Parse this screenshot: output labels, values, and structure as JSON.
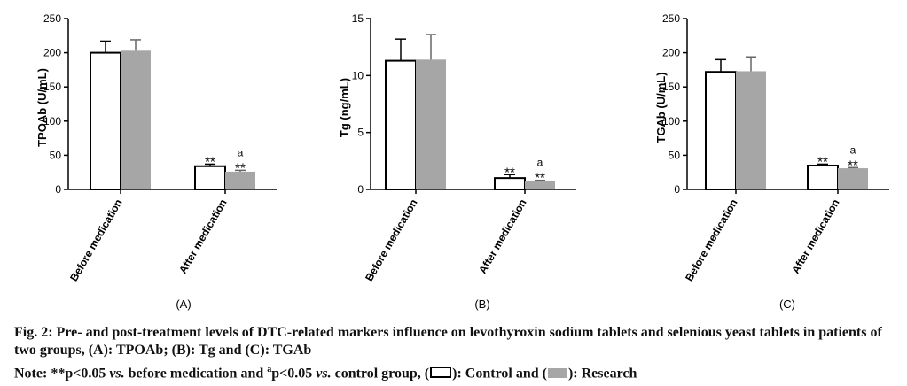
{
  "chart_data": [
    {
      "type": "bar",
      "panel_label": "(A)",
      "ylabel": "TPOAb (U/mL)",
      "categories": [
        "Before medication",
        "After medication"
      ],
      "ylim": [
        0,
        250
      ],
      "yticks": [
        0,
        50,
        100,
        150,
        200,
        250
      ],
      "series": [
        {
          "name": "Control",
          "values": [
            200,
            34
          ],
          "errors": [
            17,
            3
          ],
          "color": "#ffffff"
        },
        {
          "name": "Research",
          "values": [
            203,
            26
          ],
          "errors": [
            16,
            2
          ],
          "color": "#a6a6a7"
        }
      ],
      "annotations": [
        {
          "category": "After medication",
          "series": "Control",
          "text": "**"
        },
        {
          "category": "After medication",
          "series": "Research",
          "text": "**",
          "superscript": "a"
        }
      ]
    },
    {
      "type": "bar",
      "panel_label": "(B)",
      "ylabel": "Tg (ng/mL)",
      "categories": [
        "Before medication",
        "After medication"
      ],
      "ylim": [
        0,
        15
      ],
      "yticks": [
        0,
        5,
        10,
        15
      ],
      "series": [
        {
          "name": "Control",
          "values": [
            11.3,
            1.0
          ],
          "errors": [
            1.9,
            0.3
          ],
          "color": "#ffffff"
        },
        {
          "name": "Research",
          "values": [
            11.4,
            0.7
          ],
          "errors": [
            2.2,
            0.1
          ],
          "color": "#a6a6a7"
        }
      ],
      "annotations": [
        {
          "category": "After medication",
          "series": "Control",
          "text": "**"
        },
        {
          "category": "After medication",
          "series": "Research",
          "text": "**",
          "superscript": "a"
        }
      ]
    },
    {
      "type": "bar",
      "panel_label": "(C)",
      "ylabel": "TGAb (U/mL)",
      "categories": [
        "Before medication",
        "After medication"
      ],
      "ylim": [
        0,
        250
      ],
      "yticks": [
        0,
        50,
        100,
        150,
        200,
        250
      ],
      "series": [
        {
          "name": "Control",
          "values": [
            172,
            35
          ],
          "errors": [
            18,
            2
          ],
          "color": "#ffffff"
        },
        {
          "name": "Research",
          "values": [
            173,
            31
          ],
          "errors": [
            21,
            1
          ],
          "color": "#a6a6a7"
        }
      ],
      "annotations": [
        {
          "category": "After medication",
          "series": "Control",
          "text": "**"
        },
        {
          "category": "After medication",
          "series": "Research",
          "text": "**",
          "superscript": "a"
        }
      ]
    }
  ],
  "caption": {
    "title": "Fig. 2: Pre- and post-treatment levels of DTC-related markers influence on levothyroxin sodium tablets and selenious yeast tablets in patients of two groups, (A): TPOAb; (B): Tg and (C): TGAb",
    "note_prefix": "Note: **p<0.05 ",
    "note_vs1": "vs.",
    "note_mid1": " before medication and ",
    "note_sup": "a",
    "note_mid2": "p<0.05 ",
    "note_vs2": "vs.",
    "note_mid3": " control group, (",
    "note_control": "): Control and (",
    "note_research": "): Research"
  }
}
